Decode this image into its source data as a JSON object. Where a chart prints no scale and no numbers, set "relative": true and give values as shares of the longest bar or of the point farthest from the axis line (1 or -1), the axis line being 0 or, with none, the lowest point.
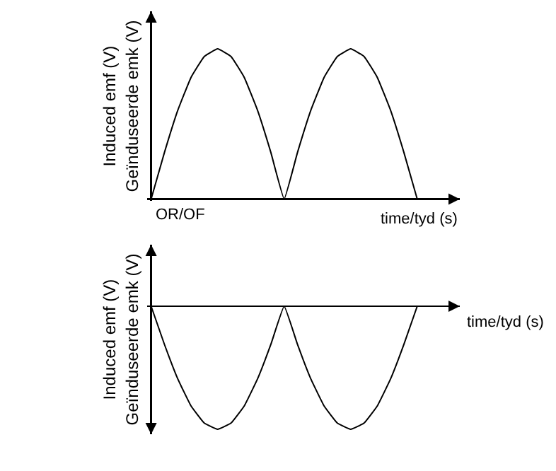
{
  "chart_data": [
    {
      "type": "line",
      "relative": true,
      "color": "#000000",
      "xlabel": "time/tyd (s)",
      "ylabel": "Induced emf (V)\nGeïnduseerde emk (V)",
      "annotations": [
        "OR/OF"
      ],
      "categories": [
        null,
        null,
        null,
        null,
        null,
        null,
        null,
        null,
        null,
        null,
        null,
        null,
        null,
        null,
        null,
        null,
        null,
        null,
        null,
        null,
        null
      ],
      "values": [
        0,
        0.31,
        0.59,
        0.81,
        0.95,
        1,
        0.95,
        0.81,
        0.59,
        0.31,
        0,
        0.31,
        0.59,
        0.81,
        0.95,
        1,
        0.95,
        0.81,
        0.59,
        0.31,
        0
      ]
    },
    {
      "type": "line",
      "relative": true,
      "color": "#000000",
      "xlabel": "time/tyd (s)",
      "ylabel": "Induced emf (V)\nGeïnduseerde emk (V)",
      "categories": [
        null,
        null,
        null,
        null,
        null,
        null,
        null,
        null,
        null,
        null,
        null,
        null,
        null,
        null,
        null,
        null,
        null,
        null,
        null,
        null,
        null
      ],
      "values": [
        0,
        -0.31,
        -0.59,
        -0.81,
        -0.95,
        -1,
        -0.95,
        -0.81,
        -0.59,
        -0.31,
        0,
        -0.31,
        -0.59,
        -0.81,
        -0.95,
        -1,
        -0.95,
        -0.81,
        -0.59,
        -0.31,
        0
      ]
    }
  ]
}
